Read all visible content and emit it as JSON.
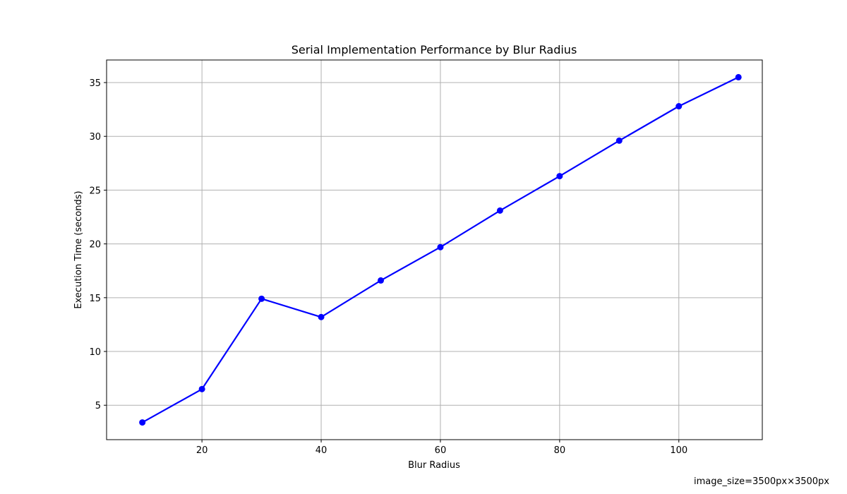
{
  "chart_data": {
    "type": "line",
    "title": "Serial Implementation Performance by Blur Radius",
    "xlabel": "Blur Radius",
    "ylabel": "Execution Time (seconds)",
    "xlim": [
      4,
      114
    ],
    "ylim": [
      1.8,
      37.1
    ],
    "xticks": [
      20,
      40,
      60,
      80,
      100
    ],
    "yticks": [
      5,
      10,
      15,
      20,
      25,
      30,
      35
    ],
    "grid": true,
    "series": [
      {
        "color": "#0000ff",
        "x": [
          10,
          20,
          30,
          40,
          50,
          60,
          70,
          80,
          90,
          100,
          110
        ],
        "y": [
          3.4,
          6.5,
          14.9,
          13.2,
          16.6,
          19.7,
          23.1,
          26.3,
          29.6,
          32.8,
          35.5
        ]
      }
    ]
  },
  "footnote": "image_size=3500px×3500px"
}
